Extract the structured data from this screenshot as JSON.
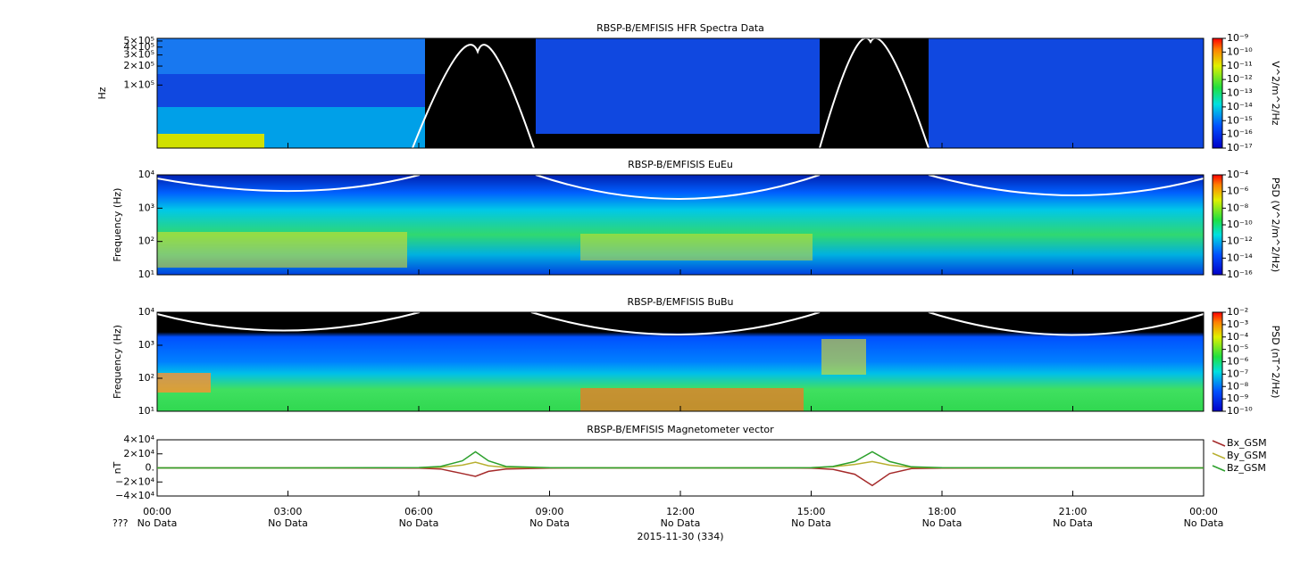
{
  "chart_data": [
    {
      "type": "heatmap",
      "title": "RBSP-B/EMFISIS  HFR Spectra Data",
      "ylabel": "Hz",
      "yscale": "log",
      "ylim": [
        10000,
        550000
      ],
      "yticks": [
        {
          "value": 100000,
          "label": "1×10⁵"
        },
        {
          "value": 200000,
          "label": "2×10⁵"
        },
        {
          "value": 300000,
          "label": "3×10⁵"
        },
        {
          "value": 400000,
          "label": "4×10⁵"
        },
        {
          "value": 500000,
          "label": "5×10⁵"
        }
      ],
      "colorbar": {
        "label": "V^2/m^2/Hz",
        "lim": [
          1e-17,
          1e-09
        ],
        "ticks": [
          {
            "value": 1e-17,
            "label": "10⁻¹⁷"
          },
          {
            "value": 1e-16,
            "label": "10⁻¹⁶"
          },
          {
            "value": 1e-15,
            "label": "10⁻¹⁵"
          },
          {
            "value": 1e-14,
            "label": "10⁻¹⁴"
          },
          {
            "value": 1e-13,
            "label": "10⁻¹³"
          },
          {
            "value": 1e-12,
            "label": "10⁻¹²"
          },
          {
            "value": 1e-11,
            "label": "10⁻¹¹"
          },
          {
            "value": 1e-10,
            "label": "10⁻¹⁰"
          },
          {
            "value": 1e-09,
            "label": "10⁻⁹"
          }
        ]
      }
    },
    {
      "type": "heatmap",
      "title": "RBSP-B/EMFISIS  EuEu",
      "ylabel": "Frequency (Hz)",
      "yscale": "log",
      "ylim": [
        10,
        10000
      ],
      "yticks": [
        {
          "value": 10,
          "label": "10¹"
        },
        {
          "value": 100,
          "label": "10²"
        },
        {
          "value": 1000,
          "label": "10³"
        },
        {
          "value": 10000,
          "label": "10⁴"
        }
      ],
      "colorbar": {
        "label": "PSD (V^2/m^2/Hz)",
        "lim": [
          1e-16,
          0.0001
        ],
        "ticks": [
          {
            "value": 1e-16,
            "label": "10⁻¹⁶"
          },
          {
            "value": 1e-14,
            "label": "10⁻¹⁴"
          },
          {
            "value": 1e-12,
            "label": "10⁻¹²"
          },
          {
            "value": 1e-10,
            "label": "10⁻¹⁰"
          },
          {
            "value": 1e-08,
            "label": "10⁻⁸"
          },
          {
            "value": 1e-06,
            "label": "10⁻⁶"
          },
          {
            "value": 0.0001,
            "label": "10⁻⁴"
          }
        ]
      }
    },
    {
      "type": "heatmap",
      "title": "RBSP-B/EMFISIS  BuBu",
      "ylabel": "Frequency (Hz)",
      "yscale": "log",
      "ylim": [
        10,
        10000
      ],
      "yticks": [
        {
          "value": 10,
          "label": "10¹"
        },
        {
          "value": 100,
          "label": "10²"
        },
        {
          "value": 1000,
          "label": "10³"
        },
        {
          "value": 10000,
          "label": "10⁴"
        }
      ],
      "colorbar": {
        "label": "PSD (nT^2/Hz)",
        "lim": [
          1e-10,
          0.01
        ],
        "ticks": [
          {
            "value": 1e-10,
            "label": "10⁻¹⁰"
          },
          {
            "value": 1e-09,
            "label": "10⁻⁹"
          },
          {
            "value": 1e-08,
            "label": "10⁻⁸"
          },
          {
            "value": 1e-07,
            "label": "10⁻⁷"
          },
          {
            "value": 1e-06,
            "label": "10⁻⁶"
          },
          {
            "value": 1e-05,
            "label": "10⁻⁵"
          },
          {
            "value": 0.0001,
            "label": "10⁻⁴"
          },
          {
            "value": 0.001,
            "label": "10⁻³"
          },
          {
            "value": 0.01,
            "label": "10⁻²"
          }
        ]
      }
    },
    {
      "type": "line",
      "title": "RBSP-B/EMFISIS  Magnetometer vector",
      "ylabel": "nT",
      "xlabel": "2015-11-30 (334)",
      "row_label": "???",
      "xlim": [
        0,
        24
      ],
      "xticks": [
        {
          "value": 0,
          "label": "00:00"
        },
        {
          "value": 3,
          "label": "03:00"
        },
        {
          "value": 6,
          "label": "06:00"
        },
        {
          "value": 9,
          "label": "09:00"
        },
        {
          "value": 12,
          "label": "12:00"
        },
        {
          "value": 15,
          "label": "15:00"
        },
        {
          "value": 18,
          "label": "18:00"
        },
        {
          "value": 21,
          "label": "21:00"
        },
        {
          "value": 24,
          "label": "00:00"
        }
      ],
      "tick_sublabels": [
        "No Data",
        "No Data",
        "No Data",
        "No Data",
        "No Data",
        "No Data",
        "No Data",
        "No Data",
        "No Data"
      ],
      "ylim": [
        -40000,
        40000
      ],
      "yticks": [
        {
          "value": -40000,
          "label": "−4×10⁴"
        },
        {
          "value": -20000,
          "label": "−2×10⁴"
        },
        {
          "value": 0,
          "label": "0."
        },
        {
          "value": 20000,
          "label": "2×10⁴"
        },
        {
          "value": 40000,
          "label": "4×10⁴"
        }
      ],
      "x": [
        0,
        3,
        6,
        6.5,
        7,
        7.3,
        7.6,
        8,
        9,
        12,
        15,
        15.5,
        16,
        16.4,
        16.8,
        17.3,
        18,
        21,
        24
      ],
      "series": [
        {
          "name": "Bx_GSM",
          "color": "#a52a2a",
          "values": [
            0,
            0,
            -300,
            -1500,
            -8000,
            -12000,
            -5000,
            -1500,
            -200,
            0,
            -300,
            -2000,
            -9000,
            -25000,
            -8000,
            -1000,
            -200,
            0,
            0
          ]
        },
        {
          "name": "By_GSM",
          "color": "#b8b030",
          "values": [
            0,
            0,
            200,
            1000,
            4000,
            8000,
            3000,
            700,
            100,
            0,
            200,
            1500,
            5000,
            9000,
            4000,
            700,
            100,
            0,
            0
          ]
        },
        {
          "name": "Bz_GSM",
          "color": "#2ca02c",
          "values": [
            0,
            0,
            500,
            2000,
            10000,
            23000,
            10000,
            2000,
            300,
            0,
            300,
            2000,
            9000,
            23000,
            9000,
            1500,
            300,
            0,
            0
          ]
        }
      ]
    }
  ]
}
